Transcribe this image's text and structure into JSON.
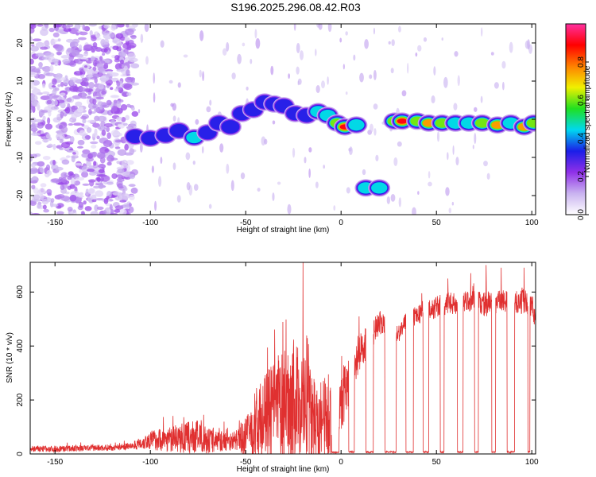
{
  "title": "S196.2025.296.08.42.R03",
  "chart_data": [
    {
      "type": "heatmap",
      "title": "S196.2025.296.08.42.R03",
      "xlabel": "Height of straight line (km)",
      "ylabel": "Frequency (Hz)",
      "xlim": [
        -163,
        102
      ],
      "ylim": [
        -25,
        25
      ],
      "xticks": [
        -150,
        -100,
        -50,
        0,
        50,
        100
      ],
      "yticks": [
        -20,
        -10,
        0,
        10,
        20
      ],
      "colorbar": {
        "label": "Normalized spectral amplitude",
        "range": [
          0,
          1
        ],
        "ticks": [
          0.0,
          0.2,
          0.4,
          0.6,
          0.8
        ],
        "tick_labels": [
          "0.0",
          "0.2",
          "0.4",
          "0.6",
          "0.8"
        ],
        "colors": [
          "#ffffff",
          "#c9b3f0",
          "#9030e8",
          "#1a1ee8",
          "#00d8f0",
          "#20e020",
          "#f0f000",
          "#ff8000",
          "#ff0000",
          "#ff30a0"
        ]
      },
      "noise_region": {
        "x_range": [
          -163,
          -108
        ],
        "freq_range": [
          -25,
          25
        ],
        "amplitude": 0.15
      },
      "ridge": [
        {
          "x": -108,
          "freq": -4.5,
          "amplitude": 0.35
        },
        {
          "x": -100,
          "freq": -5.0,
          "amplitude": 0.38
        },
        {
          "x": -92,
          "freq": -4.2,
          "amplitude": 0.36
        },
        {
          "x": -85,
          "freq": -3.0,
          "amplitude": 0.3
        },
        {
          "x": -77,
          "freq": -4.8,
          "amplitude": 0.45
        },
        {
          "x": -70,
          "freq": -3.5,
          "amplitude": 0.3
        },
        {
          "x": -64,
          "freq": -1.0,
          "amplitude": 0.32
        },
        {
          "x": -58,
          "freq": -2.0,
          "amplitude": 0.35
        },
        {
          "x": -52,
          "freq": 1.5,
          "amplitude": 0.3
        },
        {
          "x": -46,
          "freq": 2.5,
          "amplitude": 0.35
        },
        {
          "x": -40,
          "freq": 4.5,
          "amplitude": 0.35
        },
        {
          "x": -35,
          "freq": 4.0,
          "amplitude": 0.3
        },
        {
          "x": -30,
          "freq": 3.5,
          "amplitude": 0.3
        },
        {
          "x": -24,
          "freq": 1.5,
          "amplitude": 0.3
        },
        {
          "x": -18,
          "freq": 1.0,
          "amplitude": 0.4
        },
        {
          "x": -12,
          "freq": 2.0,
          "amplitude": 0.45
        },
        {
          "x": -7,
          "freq": 1.0,
          "amplitude": 0.5
        },
        {
          "x": -2,
          "freq": -1.0,
          "amplitude": 0.6
        },
        {
          "x": 2,
          "freq": -2.0,
          "amplitude": 0.9
        },
        {
          "x": 8,
          "freq": -1.5,
          "amplitude": 0.5
        },
        {
          "x": 13,
          "freq": -18.0,
          "amplitude": 0.5
        },
        {
          "x": 20,
          "freq": -18.0,
          "amplitude": 0.55
        },
        {
          "x": 28,
          "freq": -0.5,
          "amplitude": 0.6
        },
        {
          "x": 32,
          "freq": -0.5,
          "amplitude": 0.95
        },
        {
          "x": 40,
          "freq": -0.5,
          "amplitude": 0.6
        },
        {
          "x": 46,
          "freq": -1.0,
          "amplitude": 0.8
        },
        {
          "x": 53,
          "freq": -1.0,
          "amplitude": 0.6
        },
        {
          "x": 60,
          "freq": -1.0,
          "amplitude": 0.55
        },
        {
          "x": 67,
          "freq": -1.0,
          "amplitude": 0.5
        },
        {
          "x": 74,
          "freq": -1.0,
          "amplitude": 0.6
        },
        {
          "x": 82,
          "freq": -1.5,
          "amplitude": 0.8
        },
        {
          "x": 89,
          "freq": -1.0,
          "amplitude": 0.5
        },
        {
          "x": 96,
          "freq": -2.0,
          "amplitude": 0.85
        },
        {
          "x": 101,
          "freq": -1.0,
          "amplitude": 0.6
        }
      ]
    },
    {
      "type": "line",
      "xlabel": "Height of straight line (km)",
      "ylabel": "SNR (10 * v/v)",
      "xlim": [
        -163,
        102
      ],
      "ylim": [
        0,
        710
      ],
      "xticks": [
        -150,
        -100,
        -50,
        0,
        50,
        100
      ],
      "yticks": [
        0,
        200,
        400,
        600
      ],
      "series": [
        {
          "name": "SNR",
          "color": "#e03030",
          "envelope": {
            "x": [
              -163,
              -150,
              -120,
              -110,
              -100,
              -90,
              -80,
              -75,
              -70,
              -60,
              -55,
              -50,
              -45,
              -40,
              -35,
              -30,
              -25,
              -20,
              -15,
              -10,
              -5,
              0,
              5,
              10,
              15,
              20,
              25,
              30,
              35,
              40,
              45,
              50,
              55,
              60,
              65,
              70,
              75,
              80,
              85,
              90,
              95,
              100,
              102
            ],
            "base": [
              20,
              20,
              25,
              30,
              55,
              60,
              65,
              70,
              55,
              50,
              55,
              70,
              120,
              150,
              180,
              200,
              220,
              200,
              160,
              140,
              160,
              200,
              310,
              390,
              440,
              490,
              470,
              450,
              500,
              520,
              530,
              550,
              560,
              560,
              570,
              570,
              560,
              565,
              570,
              560,
              570,
              560,
              500
            ],
            "spread": [
              20,
              20,
              20,
              20,
              60,
              80,
              100,
              100,
              80,
              60,
              60,
              120,
              220,
              260,
              320,
              350,
              380,
              350,
              300,
              260,
              250,
              200,
              150,
              120,
              100,
              80,
              70,
              60,
              60,
              60,
              60,
              70,
              70,
              70,
              60,
              70,
              80,
              70,
              70,
              70,
              80,
              80,
              80
            ]
          },
          "peaks": [
            {
              "x": -72,
              "y": 145
            },
            {
              "x": -20,
              "y": 710
            },
            {
              "x": 56,
              "y": 650
            },
            {
              "x": 68,
              "y": 670
            },
            {
              "x": 76,
              "y": 700
            },
            {
              "x": 84,
              "y": 690
            },
            {
              "x": 96,
              "y": 690
            }
          ],
          "dropouts": [
            {
              "from": -5,
              "to": -1
            },
            {
              "from": 4,
              "to": 7
            },
            {
              "from": 13,
              "to": 17
            },
            {
              "from": 23,
              "to": 29
            },
            {
              "from": 34,
              "to": 38
            },
            {
              "from": 43,
              "to": 46
            },
            {
              "from": 52,
              "to": 54
            },
            {
              "from": 61,
              "to": 64
            },
            {
              "from": 70,
              "to": 72
            },
            {
              "from": 79,
              "to": 81
            },
            {
              "from": 87,
              "to": 91
            },
            {
              "from": 98,
              "to": 99
            }
          ]
        }
      ]
    }
  ]
}
